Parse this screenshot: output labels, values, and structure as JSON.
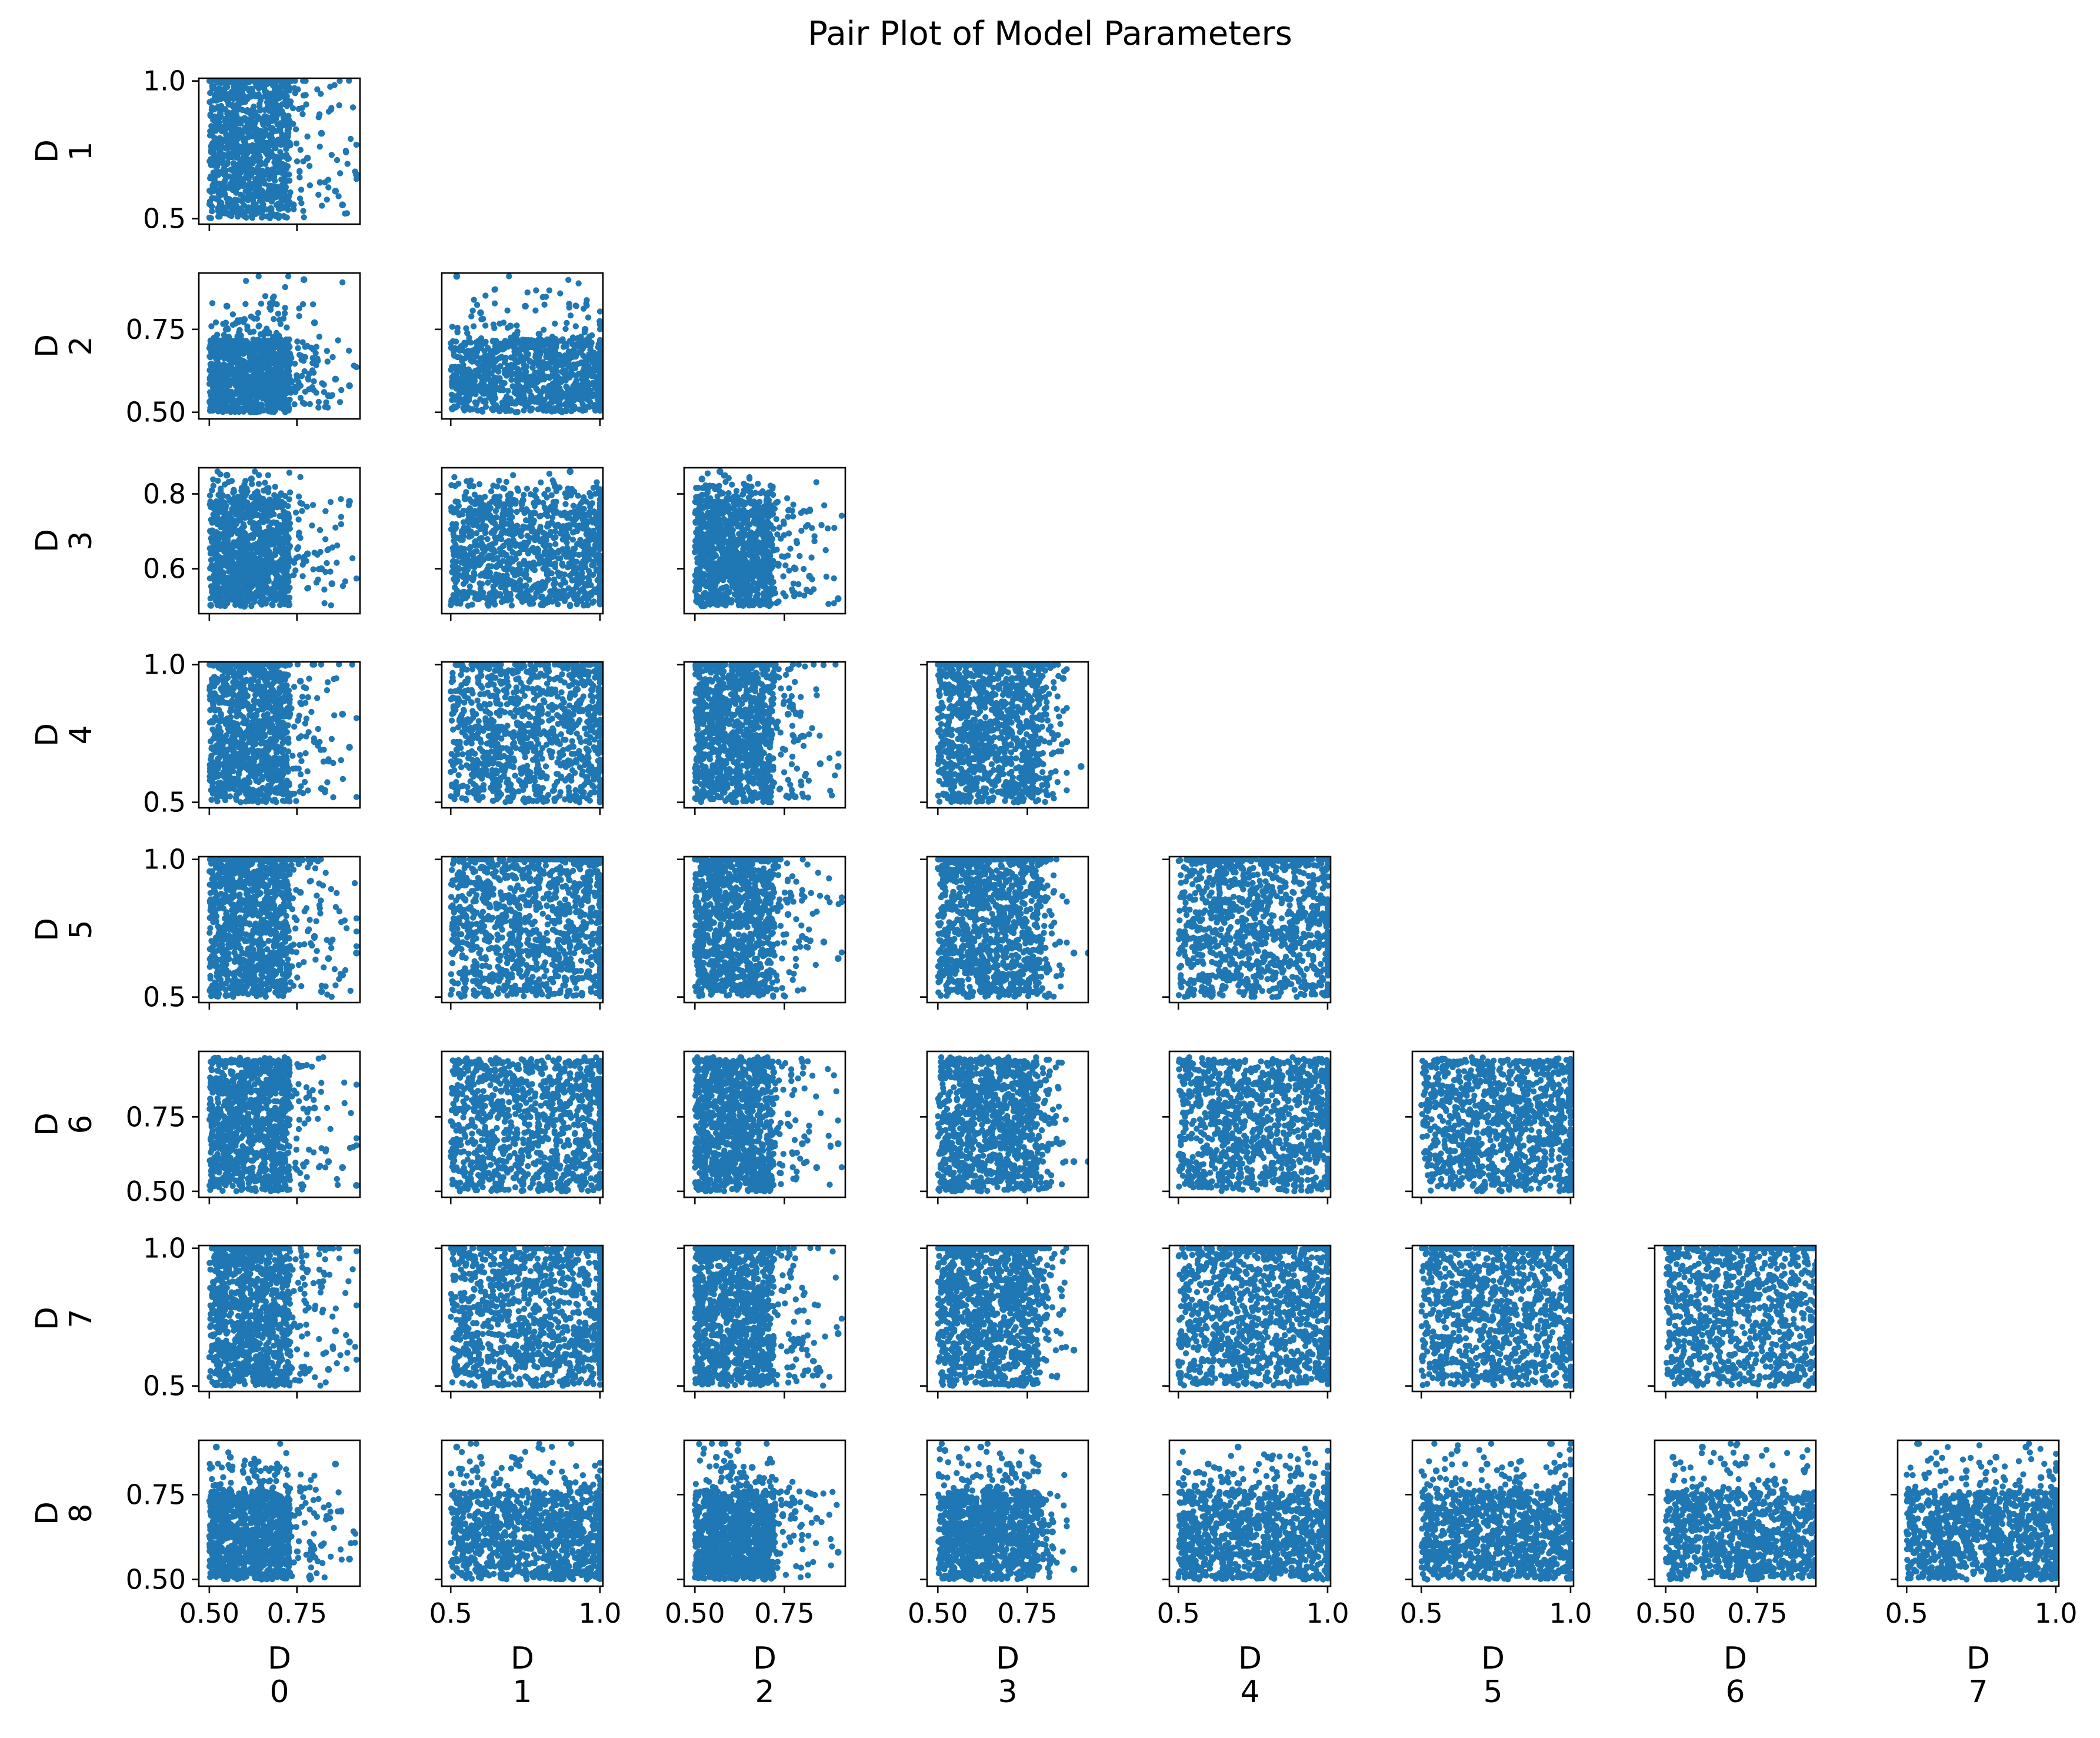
{
  "title": "Pair Plot of Model Parameters",
  "colors": {
    "marker": "#1f77b4",
    "frame": "#000000",
    "background": "#ffffff"
  },
  "chart_data": {
    "type": "scatter",
    "layout": "lower-triangle pair plot",
    "variables": [
      "D\n0",
      "D\n1",
      "D\n2",
      "D\n3",
      "D\n4",
      "D\n5",
      "D\n6",
      "D\n7",
      "D\n8"
    ],
    "grid": false,
    "marker": "filled circle",
    "columns": [
      {
        "var": 0,
        "xlim": [
          0.47,
          0.93
        ],
        "xticks": [
          0.5,
          0.75
        ],
        "xtick_labels": [
          "0.50",
          "0.75"
        ]
      },
      {
        "var": 1,
        "xlim": [
          0.47,
          1.01
        ],
        "xticks": [
          0.5,
          1.0
        ],
        "xtick_labels": [
          "0.5",
          "1.0"
        ]
      },
      {
        "var": 2,
        "xlim": [
          0.47,
          0.92
        ],
        "xticks": [
          0.5,
          0.75
        ],
        "xtick_labels": [
          "0.50",
          "0.75"
        ]
      },
      {
        "var": 3,
        "xlim": [
          0.47,
          0.92
        ],
        "xticks": [
          0.5,
          0.75
        ],
        "xtick_labels": [
          "0.50",
          "0.75"
        ]
      },
      {
        "var": 4,
        "xlim": [
          0.47,
          1.01
        ],
        "xticks": [
          0.5,
          1.0
        ],
        "xtick_labels": [
          "0.5",
          "1.0"
        ]
      },
      {
        "var": 5,
        "xlim": [
          0.47,
          1.01
        ],
        "xticks": [
          0.5,
          1.0
        ],
        "xtick_labels": [
          "0.5",
          "1.0"
        ]
      },
      {
        "var": 6,
        "xlim": [
          0.47,
          0.91
        ],
        "xticks": [
          0.5,
          0.75
        ],
        "xtick_labels": [
          "0.50",
          "0.75"
        ]
      },
      {
        "var": 7,
        "xlim": [
          0.47,
          1.01
        ],
        "xticks": [
          0.5,
          1.0
        ],
        "xtick_labels": [
          "0.5",
          "1.0"
        ]
      }
    ],
    "rows": [
      {
        "var": 1,
        "ylim": [
          0.48,
          1.01
        ],
        "yticks": [
          0.5,
          1.0
        ],
        "ytick_labels": [
          "0.5",
          "1.0"
        ]
      },
      {
        "var": 2,
        "ylim": [
          0.48,
          0.92
        ],
        "yticks": [
          0.5,
          0.75
        ],
        "ytick_labels": [
          "0.50",
          "0.75"
        ]
      },
      {
        "var": 3,
        "ylim": [
          0.48,
          0.87
        ],
        "yticks": [
          0.6,
          0.8
        ],
        "ytick_labels": [
          "0.6",
          "0.8"
        ]
      },
      {
        "var": 4,
        "ylim": [
          0.48,
          1.01
        ],
        "yticks": [
          0.5,
          1.0
        ],
        "ytick_labels": [
          "0.5",
          "1.0"
        ]
      },
      {
        "var": 5,
        "ylim": [
          0.48,
          1.01
        ],
        "yticks": [
          0.5,
          1.0
        ],
        "ytick_labels": [
          "0.5",
          "1.0"
        ]
      },
      {
        "var": 6,
        "ylim": [
          0.48,
          0.97
        ],
        "yticks": [
          0.5,
          0.75
        ],
        "ytick_labels": [
          "0.50",
          "0.75"
        ]
      },
      {
        "var": 7,
        "ylim": [
          0.48,
          1.01
        ],
        "yticks": [
          0.5,
          1.0
        ],
        "ytick_labels": [
          "0.5",
          "1.0"
        ]
      },
      {
        "var": 8,
        "ylim": [
          0.48,
          0.91
        ],
        "yticks": [
          0.5,
          0.75
        ],
        "ytick_labels": [
          "0.50",
          "0.75"
        ]
      }
    ],
    "variable_ranges": [
      {
        "var": 0,
        "min": 0.5,
        "core_max": 0.73,
        "max": 0.92
      },
      {
        "var": 1,
        "min": 0.5,
        "core_max": 1.0,
        "max": 1.0
      },
      {
        "var": 2,
        "min": 0.5,
        "core_max": 0.72,
        "max": 0.91
      },
      {
        "var": 3,
        "min": 0.5,
        "core_max": 0.78,
        "max": 0.86
      },
      {
        "var": 4,
        "min": 0.5,
        "core_max": 1.0,
        "max": 1.0
      },
      {
        "var": 5,
        "min": 0.5,
        "core_max": 1.0,
        "max": 1.0
      },
      {
        "var": 6,
        "min": 0.5,
        "core_max": 0.93,
        "max": 0.95
      },
      {
        "var": 7,
        "min": 0.5,
        "core_max": 1.0,
        "max": 1.0
      },
      {
        "var": 8,
        "min": 0.5,
        "core_max": 0.76,
        "max": 0.9
      }
    ],
    "panels": [
      {
        "row": 1,
        "col": 0,
        "points": [
          [
            0.52,
            0.93
          ],
          [
            0.58,
            0.98
          ],
          [
            0.62,
            0.97
          ],
          [
            0.66,
            0.86
          ],
          [
            0.7,
            0.94
          ],
          [
            0.74,
            0.55
          ],
          [
            0.78,
            0.72
          ],
          [
            0.82,
            0.81
          ],
          [
            0.86,
            0.6
          ],
          [
            0.88,
            0.55
          ],
          [
            0.92,
            0.66
          ],
          [
            0.6,
            0.52
          ],
          [
            0.55,
            0.7
          ],
          [
            0.65,
            0.6
          ],
          [
            0.72,
            0.99
          ]
        ]
      },
      {
        "row": 2,
        "col": 0,
        "points": [
          [
            0.52,
            0.7
          ],
          [
            0.55,
            0.82
          ],
          [
            0.6,
            0.78
          ],
          [
            0.67,
            0.74
          ],
          [
            0.72,
            0.68
          ],
          [
            0.75,
            0.6
          ],
          [
            0.8,
            0.77
          ],
          [
            0.84,
            0.55
          ],
          [
            0.86,
            0.6
          ],
          [
            0.9,
            0.58
          ],
          [
            0.77,
            0.9
          ],
          [
            0.58,
            0.52
          ],
          [
            0.65,
            0.56
          ]
        ]
      },
      {
        "row": 2,
        "col": 1,
        "points": [
          [
            0.52,
            0.91
          ],
          [
            0.6,
            0.8
          ],
          [
            0.75,
            0.82
          ],
          [
            0.85,
            0.72
          ],
          [
            0.95,
            0.75
          ],
          [
            0.99,
            0.55
          ],
          [
            0.7,
            0.76
          ]
        ]
      },
      {
        "row": 3,
        "col": 0,
        "points": [
          [
            0.55,
            0.85
          ],
          [
            0.62,
            0.84
          ],
          [
            0.68,
            0.77
          ],
          [
            0.72,
            0.72
          ],
          [
            0.78,
            0.64
          ],
          [
            0.82,
            0.6
          ],
          [
            0.85,
            0.56
          ],
          [
            0.9,
            0.78
          ],
          [
            0.6,
            0.5
          ]
        ]
      },
      {
        "row": 3,
        "col": 1,
        "points": [
          [
            0.6,
            0.78
          ],
          [
            0.7,
            0.8
          ],
          [
            0.85,
            0.82
          ],
          [
            0.9,
            0.86
          ],
          [
            0.95,
            0.65
          ],
          [
            0.99,
            0.72
          ],
          [
            0.55,
            0.6
          ]
        ]
      },
      {
        "row": 3,
        "col": 2,
        "points": [
          [
            0.52,
            0.84
          ],
          [
            0.57,
            0.86
          ],
          [
            0.62,
            0.78
          ],
          [
            0.68,
            0.72
          ],
          [
            0.72,
            0.65
          ],
          [
            0.78,
            0.6
          ],
          [
            0.82,
            0.58
          ],
          [
            0.9,
            0.52
          ]
        ]
      },
      {
        "row": 4,
        "col": 0,
        "points": [
          [
            0.76,
            0.94
          ],
          [
            0.8,
            0.72
          ],
          [
            0.84,
            0.65
          ],
          [
            0.88,
            0.82
          ],
          [
            0.9,
            0.7
          ],
          [
            0.82,
            0.55
          ]
        ]
      },
      {
        "row": 4,
        "col": 1,
        "points": [
          [
            0.52,
            0.53
          ],
          [
            0.99,
            0.6
          ],
          [
            0.6,
            1.0
          ]
        ]
      },
      {
        "row": 4,
        "col": 2,
        "points": [
          [
            0.72,
            0.94
          ],
          [
            0.76,
            0.82
          ],
          [
            0.8,
            0.74
          ],
          [
            0.85,
            0.64
          ],
          [
            0.9,
            0.63
          ],
          [
            0.78,
            0.52
          ]
        ]
      },
      {
        "row": 4,
        "col": 3,
        "points": [
          [
            0.78,
            0.9
          ],
          [
            0.82,
            0.75
          ],
          [
            0.86,
            0.72
          ],
          [
            0.9,
            0.63
          ],
          [
            0.85,
            0.95
          ]
        ]
      },
      {
        "row": 5,
        "col": 0,
        "points": [
          [
            0.76,
            0.88
          ],
          [
            0.8,
            0.72
          ],
          [
            0.84,
            0.64
          ],
          [
            0.88,
            0.58
          ],
          [
            0.92,
            0.66
          ],
          [
            0.82,
            0.52
          ]
        ]
      },
      {
        "row": 5,
        "col": 2,
        "points": [
          [
            0.72,
            0.88
          ],
          [
            0.76,
            0.8
          ],
          [
            0.8,
            0.72
          ],
          [
            0.86,
            0.7
          ],
          [
            0.9,
            0.64
          ]
        ]
      },
      {
        "row": 5,
        "col": 3,
        "points": [
          [
            0.76,
            0.9
          ],
          [
            0.8,
            0.85
          ],
          [
            0.84,
            0.7
          ],
          [
            0.88,
            0.66
          ],
          [
            0.92,
            0.66
          ],
          [
            0.78,
            0.52
          ]
        ]
      },
      {
        "row": 6,
        "col": 0,
        "points": [
          [
            0.76,
            0.92
          ],
          [
            0.8,
            0.78
          ],
          [
            0.84,
            0.6
          ],
          [
            0.88,
            0.58
          ],
          [
            0.92,
            0.52
          ]
        ]
      },
      {
        "row": 6,
        "col": 2,
        "points": [
          [
            0.72,
            0.9
          ],
          [
            0.76,
            0.76
          ],
          [
            0.8,
            0.66
          ],
          [
            0.84,
            0.58
          ],
          [
            0.9,
            0.66
          ]
        ]
      },
      {
        "row": 6,
        "col": 3,
        "points": [
          [
            0.76,
            0.86
          ],
          [
            0.8,
            0.74
          ],
          [
            0.84,
            0.66
          ],
          [
            0.88,
            0.6
          ],
          [
            0.92,
            0.6
          ]
        ]
      },
      {
        "row": 7,
        "col": 0,
        "points": [
          [
            0.78,
            0.92
          ],
          [
            0.82,
            0.86
          ],
          [
            0.86,
            0.7
          ],
          [
            0.9,
            0.66
          ],
          [
            0.84,
            0.56
          ]
        ]
      },
      {
        "row": 7,
        "col": 2,
        "points": [
          [
            0.72,
            0.96
          ],
          [
            0.76,
            0.86
          ],
          [
            0.8,
            0.66
          ],
          [
            0.84,
            0.56
          ],
          [
            0.9,
            0.69
          ]
        ]
      },
      {
        "row": 7,
        "col": 3,
        "points": [
          [
            0.76,
            0.96
          ],
          [
            0.8,
            0.86
          ],
          [
            0.84,
            0.76
          ],
          [
            0.88,
            0.63
          ]
        ]
      },
      {
        "row": 8,
        "col": 0,
        "points": [
          [
            0.52,
            0.89
          ],
          [
            0.56,
            0.86
          ],
          [
            0.62,
            0.84
          ],
          [
            0.7,
            0.83
          ],
          [
            0.76,
            0.76
          ],
          [
            0.82,
            0.6
          ],
          [
            0.86,
            0.84
          ],
          [
            0.9,
            0.56
          ]
        ]
      },
      {
        "row": 8,
        "col": 1,
        "points": [
          [
            0.52,
            0.89
          ],
          [
            0.6,
            0.86
          ],
          [
            0.72,
            0.84
          ],
          [
            0.8,
            0.8
          ],
          [
            0.9,
            0.76
          ]
        ]
      },
      {
        "row": 8,
        "col": 2,
        "points": [
          [
            0.56,
            0.86
          ],
          [
            0.62,
            0.88
          ],
          [
            0.66,
            0.83
          ],
          [
            0.72,
            0.76
          ],
          [
            0.78,
            0.7
          ],
          [
            0.84,
            0.68
          ],
          [
            0.9,
            0.58
          ]
        ]
      },
      {
        "row": 8,
        "col": 3,
        "points": [
          [
            0.52,
            0.88
          ],
          [
            0.56,
            0.86
          ],
          [
            0.62,
            0.89
          ],
          [
            0.7,
            0.84
          ],
          [
            0.76,
            0.68
          ],
          [
            0.82,
            0.64
          ],
          [
            0.88,
            0.53
          ]
        ]
      },
      {
        "row": 8,
        "col": 4,
        "points": [
          [
            0.6,
            0.84
          ],
          [
            0.7,
            0.89
          ],
          [
            0.8,
            0.86
          ],
          [
            0.9,
            0.82
          ],
          [
            0.95,
            0.78
          ]
        ]
      },
      {
        "row": 8,
        "col": 5,
        "points": [
          [
            0.55,
            0.82
          ],
          [
            0.62,
            0.88
          ],
          [
            0.72,
            0.84
          ],
          [
            0.82,
            0.8
          ]
        ]
      },
      {
        "row": 8,
        "col": 6,
        "points": [
          [
            0.52,
            0.86
          ],
          [
            0.6,
            0.89
          ],
          [
            0.66,
            0.84
          ],
          [
            0.72,
            0.86
          ],
          [
            0.8,
            0.78
          ]
        ]
      },
      {
        "row": 8,
        "col": 7,
        "points": [
          [
            0.6,
            0.84
          ],
          [
            0.7,
            0.82
          ],
          [
            0.8,
            0.86
          ],
          [
            0.9,
            0.89
          ],
          [
            0.95,
            0.8
          ]
        ]
      }
    ]
  }
}
